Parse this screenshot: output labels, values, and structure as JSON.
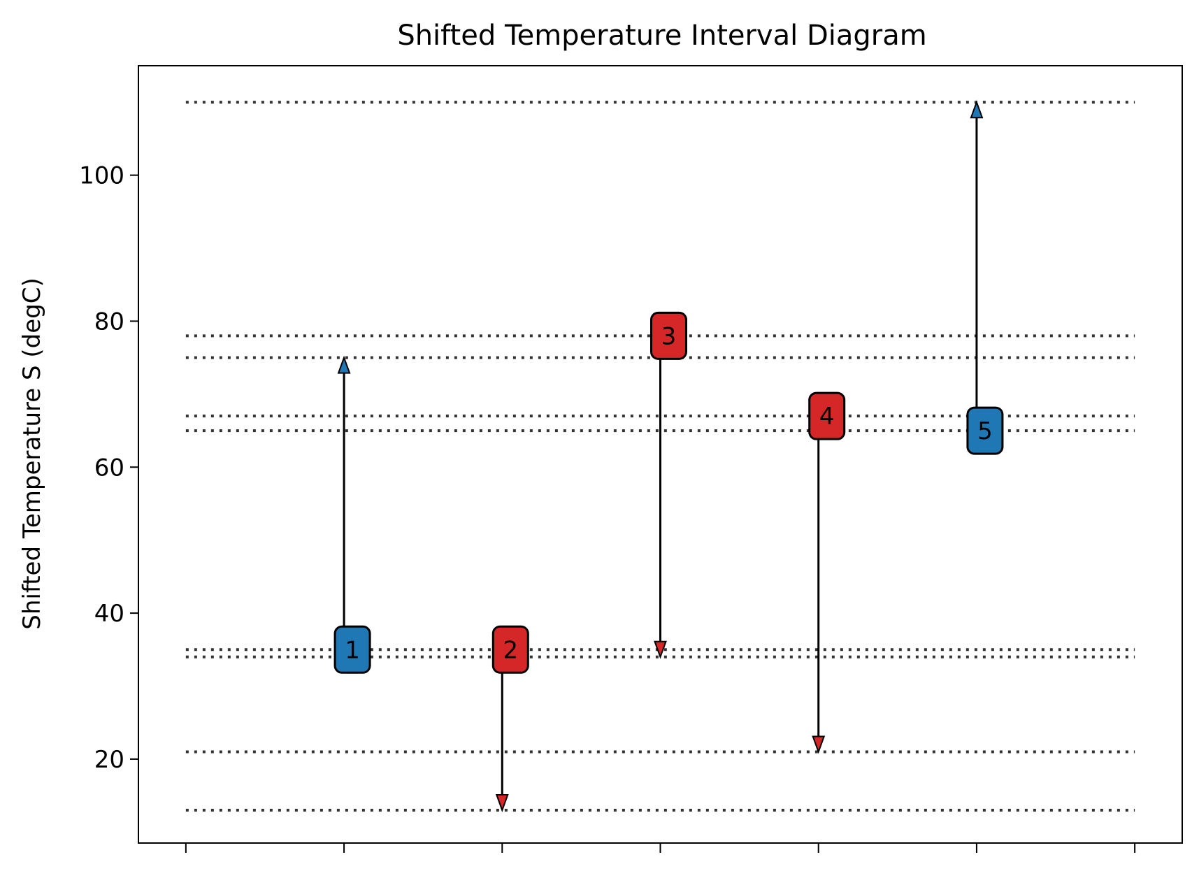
{
  "chart_data": {
    "type": "line",
    "title": "Shifted Temperature Interval Diagram",
    "xlabel": "",
    "ylabel": "Shifted Temperature S (degC)",
    "ylim": [
      8.5,
      115
    ],
    "xlim": [
      -0.3,
      6.3
    ],
    "y_ticks": [
      20,
      40,
      60,
      80,
      100
    ],
    "y_tick_labels": [
      "20",
      "40",
      "60",
      "80",
      "100"
    ],
    "x_ticks": [
      0,
      1,
      2,
      3,
      4,
      5,
      6
    ],
    "grid": false,
    "interval_lines": [
      110,
      78,
      75,
      67,
      65,
      35,
      34,
      21,
      13
    ],
    "streams": [
      {
        "label": "1",
        "x": 1,
        "start": 35,
        "end": 75,
        "kind": "cold",
        "color": "#1f77b4"
      },
      {
        "label": "2",
        "x": 2,
        "start": 35,
        "end": 13,
        "kind": "hot",
        "color": "#d62728"
      },
      {
        "label": "3",
        "x": 3,
        "start": 78,
        "end": 34,
        "kind": "hot",
        "color": "#d62728"
      },
      {
        "label": "4",
        "x": 4,
        "start": 67,
        "end": 21,
        "kind": "hot",
        "color": "#d62728"
      },
      {
        "label": "5",
        "x": 5,
        "start": 65,
        "end": 110,
        "kind": "cold",
        "color": "#1f77b4"
      }
    ]
  }
}
